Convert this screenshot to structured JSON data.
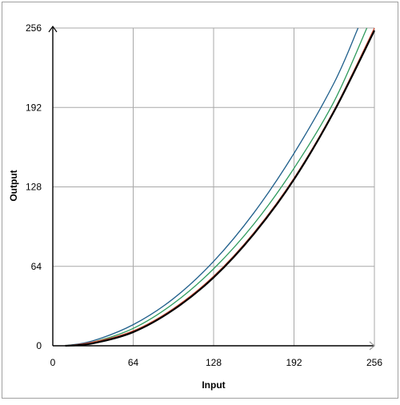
{
  "chart_data": {
    "type": "line",
    "title": "",
    "xlabel": "Input",
    "ylabel": "Output",
    "xlim": [
      0,
      256
    ],
    "ylim": [
      0,
      256
    ],
    "xticks": [
      0,
      64,
      128,
      192,
      256
    ],
    "yticks": [
      0,
      64,
      128,
      192,
      256
    ],
    "xtick_labels": [
      "0",
      "64",
      "128",
      "192",
      "256"
    ],
    "ytick_labels": [
      "0",
      "64",
      "128",
      "192",
      "256"
    ],
    "grid": true,
    "legend": "none",
    "series": [
      {
        "color": "#1f5f8b",
        "x": [
          10,
          32,
          64,
          96,
          128,
          160,
          192,
          224,
          243
        ],
        "y": [
          0,
          4,
          17,
          38,
          68,
          107,
          155,
          212,
          256
        ]
      },
      {
        "color": "#2e9a5c",
        "x": [
          10,
          32,
          64,
          96,
          128,
          160,
          192,
          224,
          250
        ],
        "y": [
          0,
          3,
          14,
          34,
          62,
          98,
          143,
          197,
          256
        ]
      },
      {
        "color": "#d9533a",
        "x": [
          10,
          32,
          64,
          96,
          128,
          160,
          192,
          224,
          256
        ],
        "y": [
          0,
          3,
          12,
          30,
          56,
          91,
          135,
          190,
          256
        ]
      },
      {
        "color": "#000000",
        "x": [
          10,
          32,
          64,
          96,
          128,
          160,
          192,
          224,
          256
        ],
        "y": [
          0,
          2,
          11,
          29,
          55,
          90,
          134,
          189,
          254
        ]
      }
    ]
  }
}
